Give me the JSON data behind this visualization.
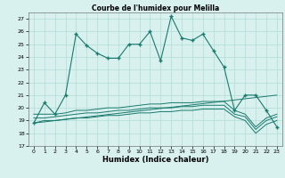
{
  "title": "Courbe de l'humidex pour Melilla",
  "xlabel": "Humidex (Indice chaleur)",
  "xlim": [
    -0.5,
    23.5
  ],
  "ylim": [
    17,
    27.5
  ],
  "yticks": [
    17,
    18,
    19,
    20,
    21,
    22,
    23,
    24,
    25,
    26,
    27
  ],
  "xticks": [
    0,
    1,
    2,
    3,
    4,
    5,
    6,
    7,
    8,
    9,
    10,
    11,
    12,
    13,
    14,
    15,
    16,
    17,
    18,
    19,
    20,
    21,
    22,
    23
  ],
  "bg_color": "#d8f0ee",
  "grid_color": "#b0ddd8",
  "line_color": "#1a7a6e",
  "line1": [
    18.8,
    20.4,
    19.5,
    21.0,
    25.8,
    24.9,
    24.3,
    23.9,
    23.9,
    25.0,
    25.0,
    26.0,
    23.7,
    27.2,
    25.5,
    25.3,
    25.8,
    24.5,
    23.2,
    19.8,
    21.0,
    21.0,
    19.8,
    18.5
  ],
  "line2": [
    19.5,
    19.5,
    19.5,
    19.6,
    19.8,
    19.8,
    19.9,
    20.0,
    20.0,
    20.1,
    20.2,
    20.3,
    20.3,
    20.4,
    20.4,
    20.4,
    20.5,
    20.5,
    20.5,
    19.8,
    19.5,
    18.5,
    19.2,
    19.5
  ],
  "line3": [
    19.2,
    19.2,
    19.3,
    19.4,
    19.5,
    19.6,
    19.6,
    19.7,
    19.8,
    19.8,
    19.9,
    20.0,
    20.0,
    20.0,
    20.1,
    20.1,
    20.2,
    20.2,
    20.2,
    19.5,
    19.3,
    18.3,
    19.0,
    19.3
  ],
  "line4": [
    18.8,
    19.0,
    19.0,
    19.1,
    19.2,
    19.2,
    19.3,
    19.4,
    19.4,
    19.5,
    19.6,
    19.6,
    19.7,
    19.7,
    19.8,
    19.8,
    19.9,
    19.9,
    19.9,
    19.3,
    19.0,
    18.0,
    18.7,
    19.0
  ],
  "diag_line": [
    [
      0,
      23
    ],
    [
      18.8,
      21.0
    ]
  ]
}
